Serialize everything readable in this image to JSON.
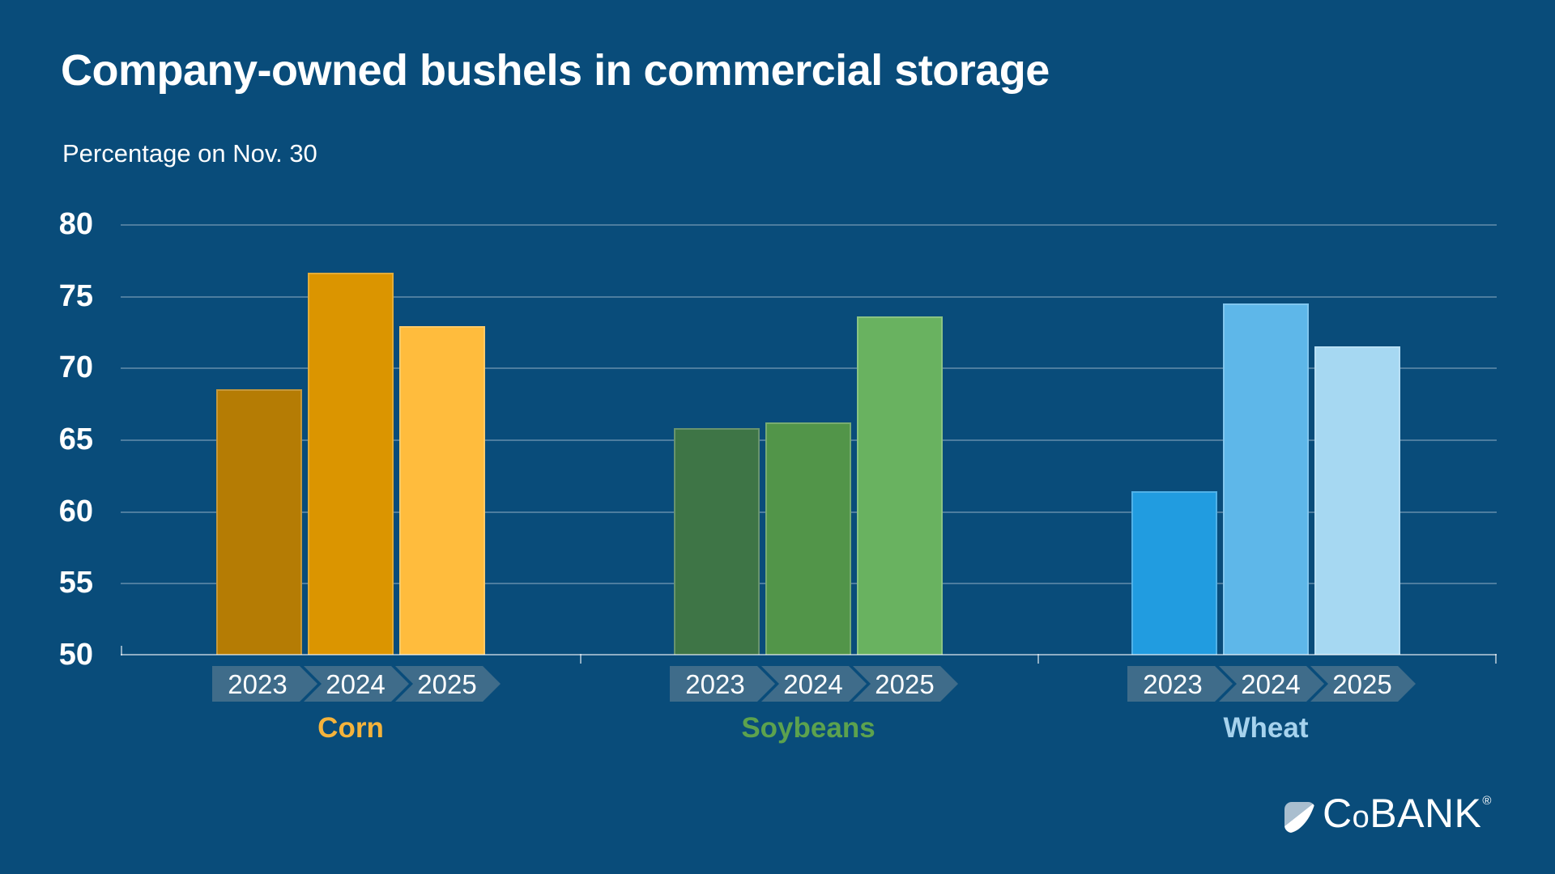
{
  "title": "Company-owned bushels in commercial storage",
  "subtitle": "Percentage on Nov. 30",
  "chart_data": {
    "type": "bar",
    "title": "Company-owned bushels in commercial storage",
    "subtitle": "Percentage on Nov. 30",
    "unit": "percent",
    "ylim": [
      50,
      80
    ],
    "y_ticks": [
      80,
      75,
      70,
      65,
      60,
      55,
      50
    ],
    "grid": true,
    "legend_position": "none",
    "categories": [
      "Corn",
      "Soybeans",
      "Wheat"
    ],
    "years": [
      "2023",
      "2024",
      "2025"
    ],
    "groups": [
      {
        "category": "Corn",
        "label_color": "#F5B33B",
        "bars": [
          {
            "year": "2023",
            "value": 68.5,
            "color": "#B57C04"
          },
          {
            "year": "2024",
            "value": 76.6,
            "color": "#DB9500"
          },
          {
            "year": "2025",
            "value": 72.9,
            "color": "#FFBC3D"
          }
        ]
      },
      {
        "category": "Soybeans",
        "label_color": "#5CA24E",
        "bars": [
          {
            "year": "2023",
            "value": 65.8,
            "color": "#3E7546"
          },
          {
            "year": "2024",
            "value": 66.2,
            "color": "#529549"
          },
          {
            "year": "2025",
            "value": 73.6,
            "color": "#69B260"
          }
        ]
      },
      {
        "category": "Wheat",
        "label_color": "#A6D2ED",
        "bars": [
          {
            "year": "2023",
            "value": 61.4,
            "color": "#219CE0"
          },
          {
            "year": "2024",
            "value": 74.5,
            "color": "#5EB7E9"
          },
          {
            "year": "2025",
            "value": 71.5,
            "color": "#A6D8F2"
          }
        ]
      }
    ]
  },
  "colors": {
    "background": "#094C7A",
    "gridline": "rgba(255,255,255,0.28)",
    "axis": "rgba(255,255,255,0.55)",
    "year_chevron_background": "#3F6C8A",
    "text": "#FFFFFF"
  },
  "logo": {
    "c": "C",
    "o": "o",
    "bank": "BANK",
    "registered": "®",
    "icon": "cobank-square-swoosh-icon"
  }
}
